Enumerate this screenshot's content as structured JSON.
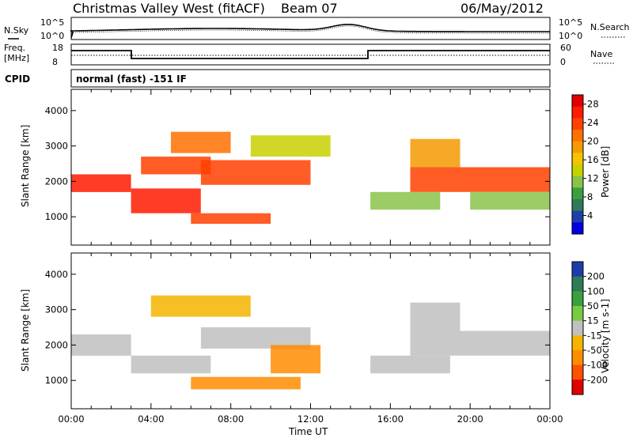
{
  "header": {
    "title": "Christmas Valley West (fitACF)",
    "beam": "Beam 07",
    "date": "06/May/2012"
  },
  "top_panels": {
    "nsky_label": "N.Sky",
    "nsearch_label": "N.Search",
    "noise_ticks": [
      "10^5",
      "10^0"
    ],
    "freq_label": [
      "Freq.",
      "[MHz]"
    ],
    "freq_ticks": [
      "18",
      "8"
    ],
    "nave_label": "Nave",
    "nave_ticks": [
      "60",
      "0"
    ],
    "cpid_label": "CPID",
    "cpid_value": "normal (fast) -151 IF"
  },
  "chart_data": [
    {
      "type": "heatmap",
      "title": "",
      "xlabel": "",
      "ylabel": "Slant Range [km]",
      "x_range_hours": [
        0,
        24
      ],
      "xlim": [
        "00:00",
        "24:00"
      ],
      "ylim": [
        200,
        4600
      ],
      "yticks": [
        1000,
        2000,
        3000,
        4000
      ],
      "colorbar": {
        "label": "Power [dB]",
        "ticks": [
          4,
          8,
          12,
          16,
          20,
          24,
          28
        ],
        "range": [
          0,
          30
        ],
        "colors": [
          "#0000e0",
          "#1f3fa8",
          "#2f7a5a",
          "#3aa03c",
          "#8bc34a",
          "#c8d000",
          "#f5c400",
          "#f59a00",
          "#ff7000",
          "#ff4000",
          "#ff1a00",
          "#e00000"
        ]
      },
      "echo_regions": [
        {
          "t_start": 0.0,
          "t_end": 3.0,
          "r_low": 1700,
          "r_high": 2200,
          "value": 27
        },
        {
          "t_start": 3.0,
          "t_end": 6.5,
          "r_low": 1100,
          "r_high": 1800,
          "value": 26
        },
        {
          "t_start": 3.5,
          "t_end": 7.0,
          "r_low": 2200,
          "r_high": 2700,
          "value": 24
        },
        {
          "t_start": 6.5,
          "t_end": 12.0,
          "r_low": 1900,
          "r_high": 2600,
          "value": 23
        },
        {
          "t_start": 6.0,
          "t_end": 10.0,
          "r_low": 800,
          "r_high": 1100,
          "value": 24
        },
        {
          "t_start": 5.0,
          "t_end": 8.0,
          "r_low": 2800,
          "r_high": 3400,
          "value": 22
        },
        {
          "t_start": 9.0,
          "t_end": 13.0,
          "r_low": 2700,
          "r_high": 3300,
          "value": 14
        },
        {
          "t_start": 15.0,
          "t_end": 18.5,
          "r_low": 1200,
          "r_high": 1700,
          "value": 10
        },
        {
          "t_start": 17.0,
          "t_end": 24.0,
          "r_low": 1700,
          "r_high": 2400,
          "value": 24
        },
        {
          "t_start": 17.0,
          "t_end": 19.5,
          "r_low": 2400,
          "r_high": 3200,
          "value": 18
        },
        {
          "t_start": 20.0,
          "t_end": 24.0,
          "r_low": 1200,
          "r_high": 1700,
          "value": 12
        }
      ]
    },
    {
      "type": "heatmap",
      "title": "",
      "xlabel": "Time UT",
      "ylabel": "Slant Range [km]",
      "x_range_hours": [
        0,
        24
      ],
      "xticks": [
        "00:00",
        "04:00",
        "08:00",
        "12:00",
        "16:00",
        "20:00",
        "00:00"
      ],
      "ylim": [
        200,
        4600
      ],
      "yticks": [
        1000,
        2000,
        3000,
        4000
      ],
      "colorbar": {
        "label": "Velocity [m s-1]",
        "ticks": [
          200,
          100,
          50,
          15,
          -15,
          -50,
          -100,
          -200
        ],
        "colors": [
          "#1e3ca8",
          "#2f7a5a",
          "#3aa03c",
          "#7ac943",
          "#c0c0c0",
          "#f5b400",
          "#ff8c00",
          "#ff5000",
          "#e00000"
        ]
      },
      "echo_regions": [
        {
          "t_start": 0.0,
          "t_end": 3.0,
          "r_low": 1700,
          "r_high": 2300,
          "value": 0
        },
        {
          "t_start": 3.0,
          "t_end": 7.0,
          "r_low": 1200,
          "r_high": 1700,
          "value": 0
        },
        {
          "t_start": 6.5,
          "t_end": 12.0,
          "r_low": 1900,
          "r_high": 2500,
          "value": 0
        },
        {
          "t_start": 6.0,
          "t_end": 11.5,
          "r_low": 750,
          "r_high": 1100,
          "value": -70
        },
        {
          "t_start": 4.0,
          "t_end": 9.0,
          "r_low": 2800,
          "r_high": 3400,
          "value": -40
        },
        {
          "t_start": 10.0,
          "t_end": 12.5,
          "r_low": 1200,
          "r_high": 2000,
          "value": -80
        },
        {
          "t_start": 15.0,
          "t_end": 19.0,
          "r_low": 1200,
          "r_high": 1700,
          "value": 0
        },
        {
          "t_start": 17.0,
          "t_end": 24.0,
          "r_low": 1700,
          "r_high": 2400,
          "value": 0
        },
        {
          "t_start": 17.0,
          "t_end": 19.5,
          "r_low": 2400,
          "r_high": 3200,
          "value": 0
        }
      ]
    }
  ]
}
